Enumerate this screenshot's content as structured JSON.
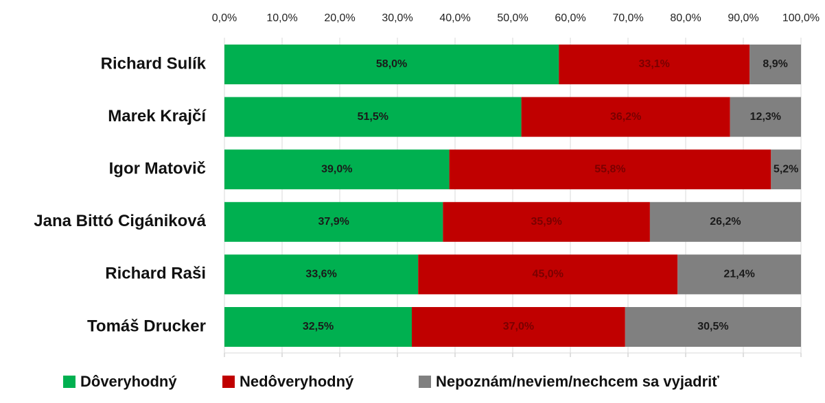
{
  "chart_data": {
    "type": "stacked_bar_horizontal",
    "categories": [
      "Richard Sulík",
      "Marek Krajčí",
      "Igor Matovič",
      "Jana Bittó Cigániková",
      "Richard Raši",
      "Tomáš Drucker"
    ],
    "series": [
      {
        "name": "Dôveryhodný",
        "color": "#00b050",
        "values": [
          58.0,
          51.5,
          39.0,
          37.9,
          33.6,
          32.5
        ],
        "value_labels": [
          "58,0%",
          "51,5%",
          "39,0%",
          "37,9%",
          "33,6%",
          "32,5%"
        ]
      },
      {
        "name": "Nedôveryhodný",
        "color": "#c00000",
        "values": [
          33.1,
          36.2,
          55.8,
          35.9,
          45.0,
          37.0
        ],
        "value_labels": [
          "33,1%",
          "36,2%",
          "55,8%",
          "35,9%",
          "45,0%",
          "37,0%"
        ]
      },
      {
        "name": "Nepoznám/neviem/nechcem sa vyjadriť",
        "color": "#808080",
        "values": [
          8.9,
          12.3,
          5.2,
          26.2,
          21.4,
          30.5
        ],
        "value_labels": [
          "8,9%",
          "12,3%",
          "5,2%",
          "26,2%",
          "21,4%",
          "30,5%"
        ]
      }
    ],
    "xlim": [
      0,
      100
    ],
    "xticks": [
      {
        "value": 0,
        "label": "0,0%"
      },
      {
        "value": 10,
        "label": "10,0%"
      },
      {
        "value": 20,
        "label": "20,0%"
      },
      {
        "value": 30,
        "label": "30,0%"
      },
      {
        "value": 40,
        "label": "40,0%"
      },
      {
        "value": 50,
        "label": "50,0%"
      },
      {
        "value": 60,
        "label": "60,0%"
      },
      {
        "value": 70,
        "label": "70,0%"
      },
      {
        "value": 80,
        "label": "80,0%"
      },
      {
        "value": 90,
        "label": "90,0%"
      },
      {
        "value": 100,
        "label": "100,0%"
      }
    ],
    "grid": true,
    "legend": "bottom"
  }
}
